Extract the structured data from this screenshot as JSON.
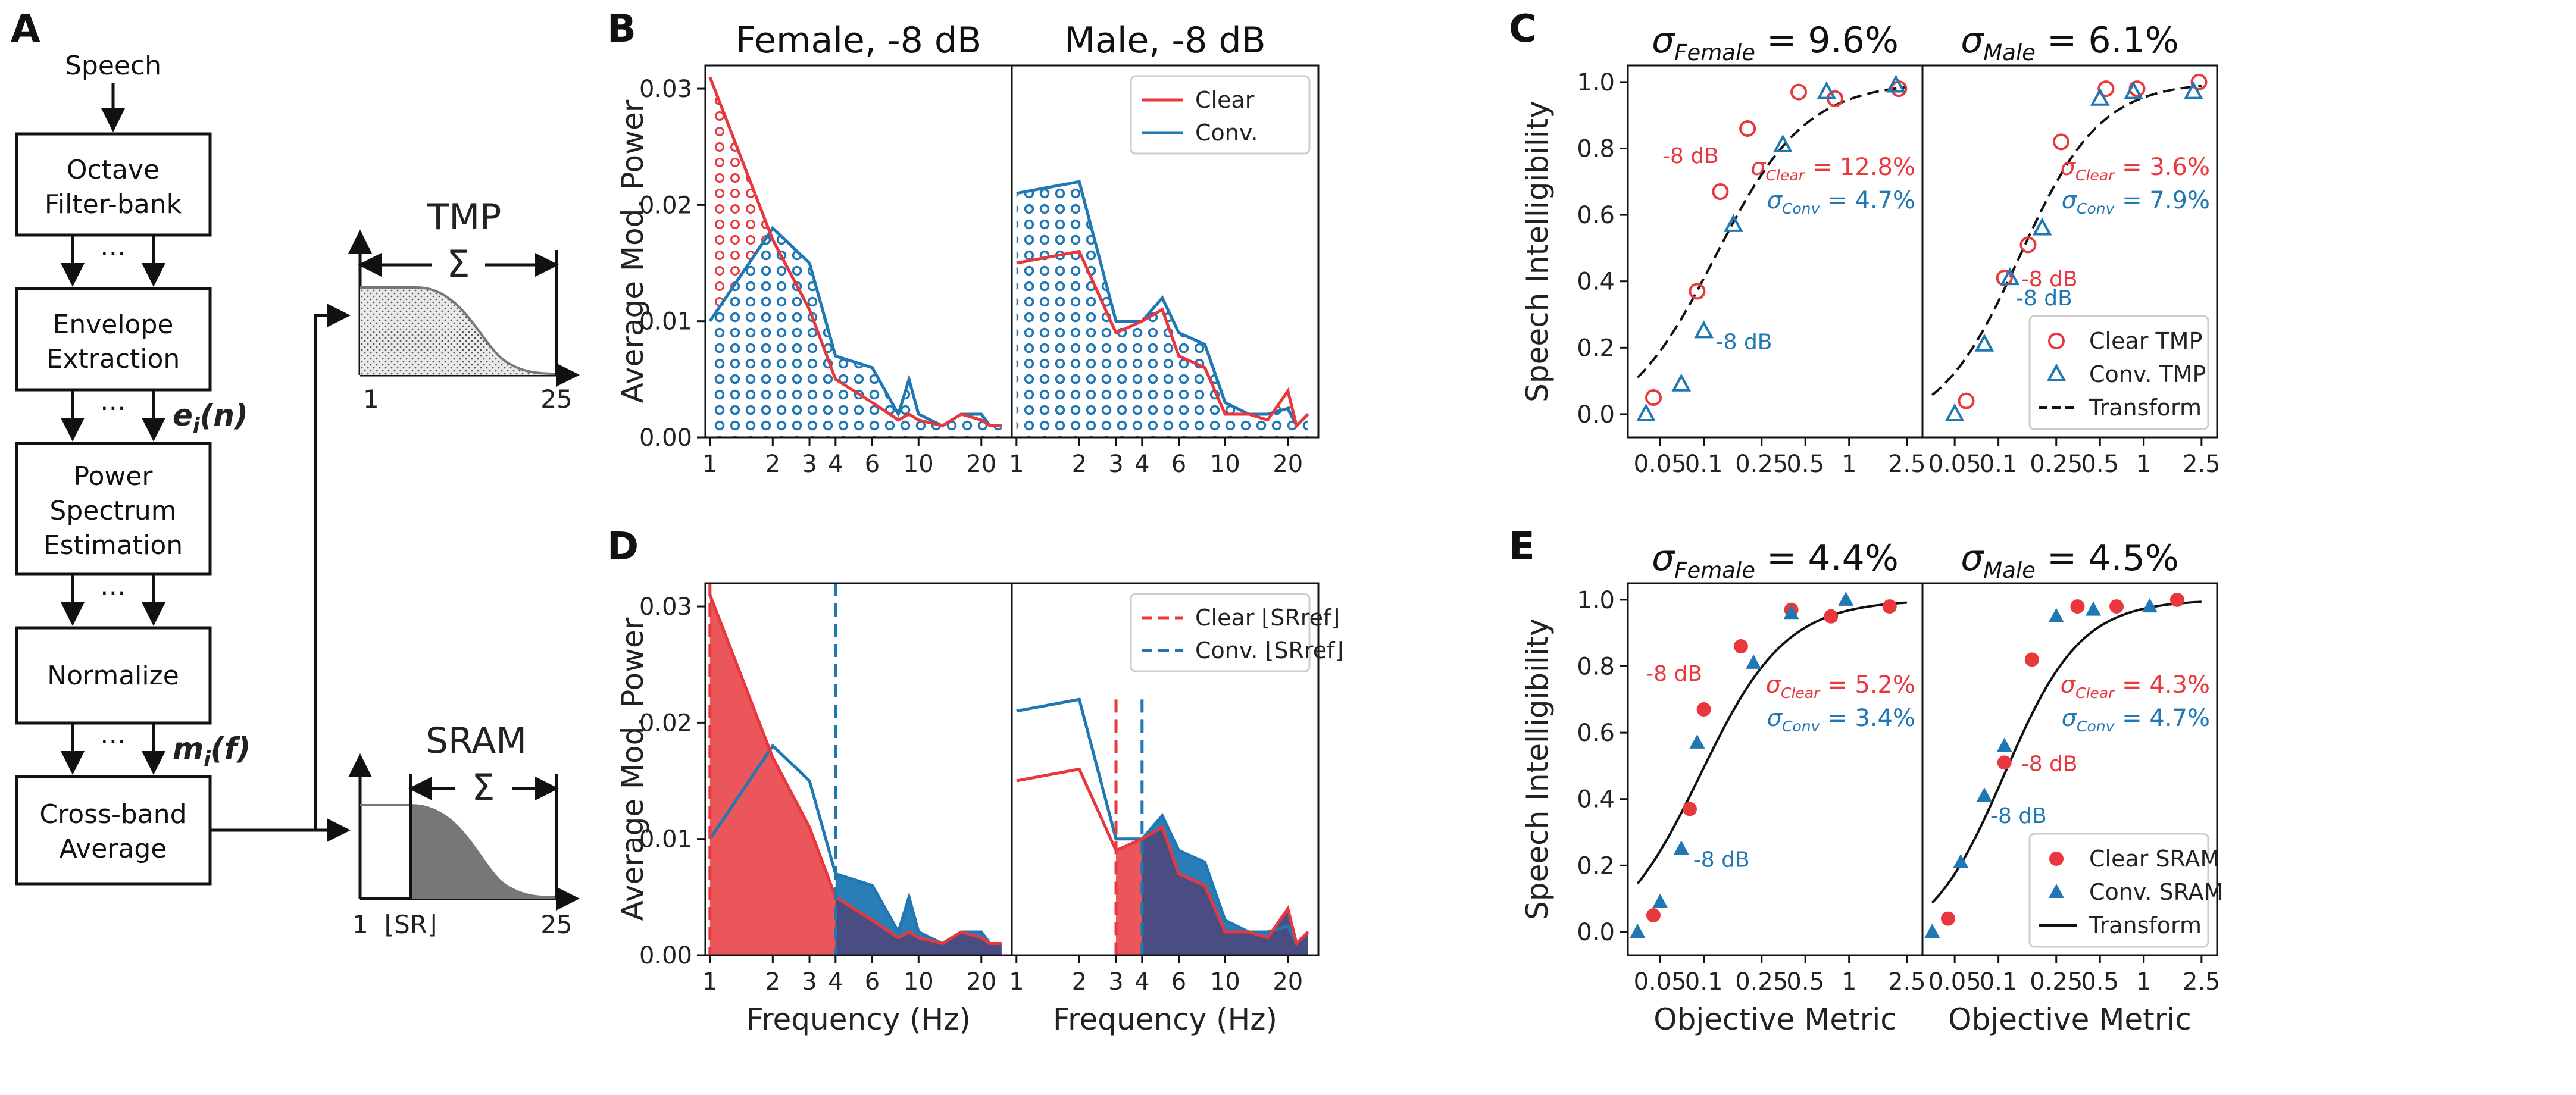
{
  "colors": {
    "clear": "#e8383d",
    "conv": "#1f77b4",
    "black": "#111111",
    "fill_gray": "#777777"
  },
  "panel_letters": [
    "A",
    "B",
    "C",
    "D",
    "E"
  ],
  "flow": {
    "speech_label": "Speech",
    "boxes": [
      {
        "line1": "Octave",
        "line2": "Filter-bank"
      },
      {
        "line1": "Envelope",
        "line2": "Extraction"
      },
      {
        "line1": "Power",
        "line2": "Spectrum",
        "line3": "Estimation"
      },
      {
        "line1": "Normalize"
      },
      {
        "line1": "Cross-band",
        "line2": "Average"
      }
    ],
    "ellipsis": "⋯",
    "ei_label": "e",
    "ei_sub": "i",
    "ei_arg": "(n)",
    "mi_label": "m",
    "mi_sub": "i",
    "mi_arg": "(f)",
    "tmp_title": "TMP",
    "sram_title": "SRAM",
    "sigma": "Σ",
    "tmp_x_start": "1",
    "tmp_x_end": "25",
    "sram_x_start": "1",
    "sram_x_sr": "⌊SR⌋",
    "sram_x_end": "25"
  },
  "chart_data": [
    {
      "panel": "B",
      "type": "area",
      "subplots": [
        {
          "title": "Female, -8 dB",
          "x": [
            1,
            2,
            3,
            4,
            6,
            8,
            9,
            10,
            13,
            16,
            20,
            22,
            25
          ],
          "series": [
            {
              "name": "Clear",
              "values": [
                0.031,
                0.017,
                0.011,
                0.005,
                0.003,
                0.0015,
                0.002,
                0.0015,
                0.001,
                0.002,
                0.0015,
                0.001,
                0.001
              ]
            },
            {
              "name": "Conv.",
              "values": [
                0.01,
                0.018,
                0.015,
                0.007,
                0.006,
                0.002,
                0.005,
                0.002,
                0.001,
                0.002,
                0.002,
                0.001,
                0.001
              ]
            }
          ]
        },
        {
          "title": "Male, -8 dB",
          "x": [
            1,
            2,
            3,
            4,
            5,
            6,
            8,
            10,
            13,
            16,
            20,
            22,
            25
          ],
          "series": [
            {
              "name": "Clear",
              "values": [
                0.015,
                0.016,
                0.009,
                0.01,
                0.011,
                0.007,
                0.006,
                0.002,
                0.002,
                0.0015,
                0.004,
                0.001,
                0.002
              ]
            },
            {
              "name": "Conv.",
              "values": [
                0.021,
                0.022,
                0.01,
                0.01,
                0.012,
                0.009,
                0.008,
                0.003,
                0.002,
                0.002,
                0.0025,
                0.001,
                0.002
              ]
            }
          ]
        }
      ],
      "ylabel": "Average Mod. Power",
      "ylim": [
        0,
        0.032
      ],
      "xlim": [
        0.95,
        28
      ],
      "yticks": [
        "0.00",
        "0.01",
        "0.02",
        "0.03"
      ],
      "xticks": [
        "1",
        "2",
        "3",
        "4",
        "6",
        "10",
        "20"
      ],
      "legend": [
        "Clear",
        "Conv."
      ],
      "legend_position": "top-right"
    },
    {
      "panel": "D",
      "type": "area",
      "subplots": [
        {
          "title": "",
          "x": [
            1,
            2,
            3,
            4,
            6,
            8,
            9,
            10,
            13,
            16,
            20,
            22,
            25
          ],
          "series": [
            {
              "name": "Clear",
              "values": [
                0.031,
                0.017,
                0.011,
                0.005,
                0.003,
                0.0015,
                0.002,
                0.0015,
                0.001,
                0.002,
                0.0015,
                0.001,
                0.001
              ]
            },
            {
              "name": "Conv.",
              "values": [
                0.01,
                0.018,
                0.015,
                0.007,
                0.006,
                0.002,
                0.005,
                0.002,
                0.001,
                0.002,
                0.002,
                0.001,
                0.001
              ]
            }
          ],
          "sr_ref": {
            "clear": 1,
            "conv": 4
          }
        },
        {
          "title": "",
          "x": [
            1,
            2,
            3,
            4,
            5,
            6,
            8,
            10,
            13,
            16,
            20,
            22,
            25
          ],
          "series": [
            {
              "name": "Clear",
              "values": [
                0.015,
                0.016,
                0.009,
                0.01,
                0.011,
                0.007,
                0.006,
                0.002,
                0.002,
                0.0015,
                0.004,
                0.001,
                0.002
              ]
            },
            {
              "name": "Conv.",
              "values": [
                0.021,
                0.022,
                0.01,
                0.01,
                0.012,
                0.009,
                0.008,
                0.003,
                0.002,
                0.002,
                0.0025,
                0.001,
                0.002
              ]
            }
          ],
          "sr_ref": {
            "clear": 3,
            "conv": 4
          }
        }
      ],
      "xlabel": "Frequency (Hz)",
      "ylabel": "Average Mod. Power",
      "ylim": [
        0,
        0.032
      ],
      "xlim": [
        0.95,
        28
      ],
      "yticks": [
        "0.00",
        "0.01",
        "0.02",
        "0.03"
      ],
      "xticks": [
        "1",
        "2",
        "3",
        "4",
        "6",
        "10",
        "20"
      ],
      "legend": [
        "Clear ⌊SRref⌋",
        "Conv. ⌊SRref⌋"
      ],
      "legend_position": "top-right"
    },
    {
      "panel": "C",
      "type": "scatter",
      "subplots": [
        {
          "title": "σFemale = 9.6%",
          "clear": [
            [
              0.045,
              0.05
            ],
            [
              0.09,
              0.37
            ],
            [
              0.13,
              0.67
            ],
            [
              0.2,
              0.86
            ],
            [
              0.45,
              0.97
            ],
            [
              0.8,
              0.95
            ],
            [
              2.2,
              0.98
            ]
          ],
          "conv": [
            [
              0.04,
              0.0
            ],
            [
              0.07,
              0.09
            ],
            [
              0.1,
              0.25
            ],
            [
              0.16,
              0.57
            ],
            [
              0.35,
              0.81
            ],
            [
              0.7,
              0.97
            ],
            [
              2.1,
              0.99
            ]
          ],
          "sigma_clear": "σClear = 12.8%",
          "sigma_conv": "σConv = 4.7%",
          "annotations": [
            "-8 dB",
            "-8 dB"
          ]
        },
        {
          "title": "σMale = 6.1%",
          "clear": [
            [
              0.06,
              0.04
            ],
            [
              0.11,
              0.41
            ],
            [
              0.16,
              0.51
            ],
            [
              0.27,
              0.82
            ],
            [
              0.55,
              0.98
            ],
            [
              0.9,
              0.98
            ],
            [
              2.4,
              1.0
            ]
          ],
          "conv": [
            [
              0.05,
              0.0
            ],
            [
              0.08,
              0.21
            ],
            [
              0.12,
              0.41
            ],
            [
              0.2,
              0.56
            ],
            [
              0.5,
              0.95
            ],
            [
              0.85,
              0.97
            ],
            [
              2.2,
              0.97
            ]
          ],
          "sigma_clear": "σClear = 3.6%",
          "sigma_conv": "σConv = 7.9%",
          "annotations": [
            "-8 dB",
            "-8 dB"
          ]
        }
      ],
      "ylabel": "Speech Intelligibility",
      "xscale": "log",
      "xlim": [
        0.03,
        3.2
      ],
      "ylim": [
        -0.07,
        1.05
      ],
      "xticks": [
        "0.05",
        "0.1",
        "0.25",
        "0.5",
        "1",
        "2.5"
      ],
      "yticks": [
        "0.0",
        "0.2",
        "0.4",
        "0.6",
        "0.8",
        "1.0"
      ],
      "legend": [
        "Clear TMP",
        "Conv. TMP",
        "Transform"
      ],
      "legend_position": "bottom-right"
    },
    {
      "panel": "E",
      "type": "scatter",
      "subplots": [
        {
          "title": "σFemale = 4.4%",
          "clear": [
            [
              0.045,
              0.05
            ],
            [
              0.08,
              0.37
            ],
            [
              0.1,
              0.67
            ],
            [
              0.18,
              0.86
            ],
            [
              0.4,
              0.97
            ],
            [
              0.75,
              0.95
            ],
            [
              1.9,
              0.98
            ]
          ],
          "conv": [
            [
              0.035,
              0.0
            ],
            [
              0.05,
              0.09
            ],
            [
              0.07,
              0.25
            ],
            [
              0.09,
              0.57
            ],
            [
              0.22,
              0.81
            ],
            [
              0.4,
              0.96
            ],
            [
              0.95,
              1.0
            ]
          ],
          "sigma_clear": "σClear = 5.2%",
          "sigma_conv": "σConv = 3.4%",
          "annotations": [
            "-8 dB",
            "-8 dB"
          ]
        },
        {
          "title": "σMale = 4.5%",
          "clear": [
            [
              0.045,
              0.04
            ],
            [
              0.11,
              0.51
            ],
            [
              0.17,
              0.82
            ],
            [
              0.35,
              0.98
            ],
            [
              0.65,
              0.98
            ],
            [
              1.7,
              1.0
            ]
          ],
          "conv": [
            [
              0.035,
              0.0
            ],
            [
              0.055,
              0.21
            ],
            [
              0.08,
              0.41
            ],
            [
              0.11,
              0.56
            ],
            [
              0.25,
              0.95
            ],
            [
              0.45,
              0.97
            ],
            [
              1.1,
              0.98
            ]
          ],
          "sigma_clear": "σClear = 4.3%",
          "sigma_conv": "σConv = 4.7%",
          "annotations": [
            "-8 dB",
            "-8 dB"
          ]
        }
      ],
      "xlabel": "Objective Metric",
      "ylabel": "Speech Intelligibility",
      "xscale": "log",
      "xlim": [
        0.03,
        3.2
      ],
      "ylim": [
        -0.07,
        1.05
      ],
      "xticks": [
        "0.05",
        "0.1",
        "0.25",
        "0.5",
        "1",
        "2.5"
      ],
      "yticks": [
        "0.0",
        "0.2",
        "0.4",
        "0.6",
        "0.8",
        "1.0"
      ],
      "legend": [
        "Clear SRAM",
        "Conv. SRAM",
        "Transform"
      ],
      "legend_position": "bottom-right"
    }
  ]
}
